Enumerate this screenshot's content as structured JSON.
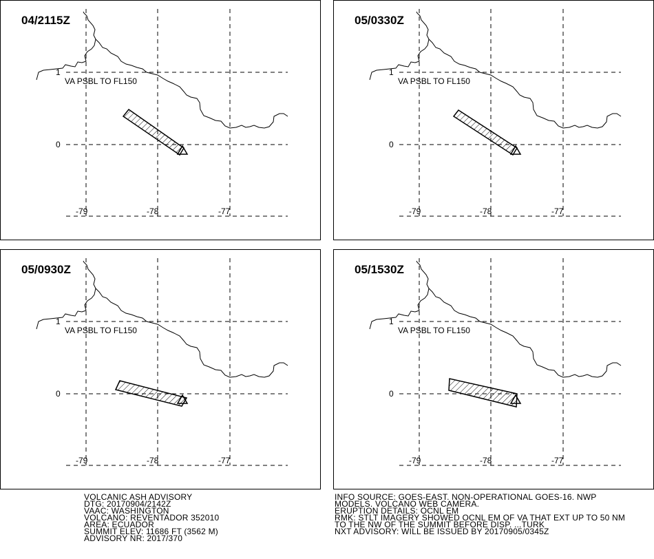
{
  "map": {
    "lat_labels": [
      "1",
      "0"
    ],
    "lon_labels": [
      "-79",
      "-78",
      "-77"
    ],
    "annotation": "VA PSBL TO FL150"
  },
  "panels": [
    {
      "time": "04/2115Z"
    },
    {
      "time": "05/0330Z"
    },
    {
      "time": "05/0930Z"
    },
    {
      "time": "05/1530Z"
    }
  ],
  "advisory_left": [
    "VOLCANIC ASH ADVISORY",
    "DTG: 20170904/2142Z",
    "VAAC: WASHINGTON",
    "VOLCANO: REVENTADOR 352010",
    "AREA: ECUADOR",
    "SUMMIT ELEV: 11686 FT (3562 M)",
    "ADVISORY NR: 2017/370"
  ],
  "advisory_right": [
    "INFO SOURCE: GOES-EAST. NON-OPERATIONAL GOES-16. NWP",
    "MODELS. VOLCANO WEB CAMERA.",
    "ERUPTION DETAILS: OCNL EM",
    "RMK: STLT IMAGERY SHOWED OCNL EM OF VA THAT EXT UP TO 50 NM",
    "TO THE NW OF THE SUMMIT BEFORE DISP. ...TURK",
    "NXT ADVISORY: WILL BE ISSUED BY 20170905/0345Z"
  ]
}
